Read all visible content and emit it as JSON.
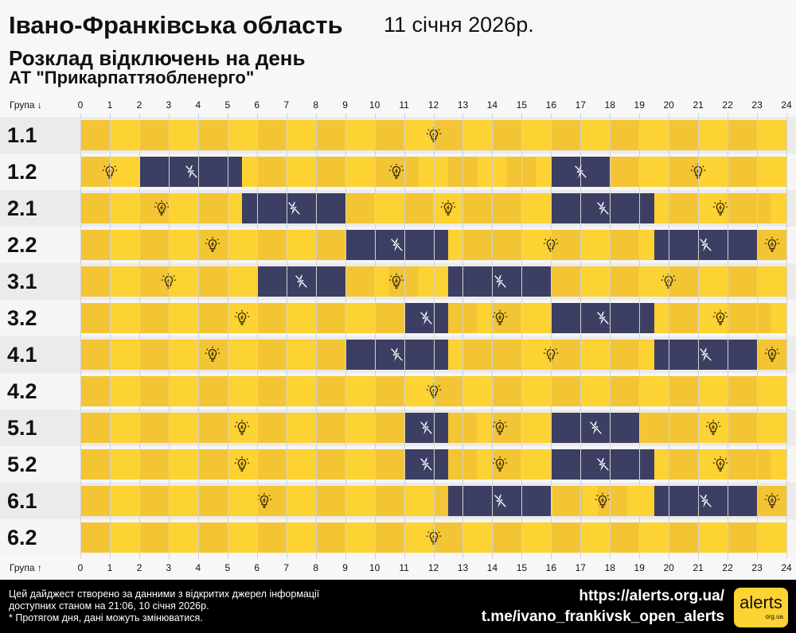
{
  "header": {
    "title": "Івано-Франківська область",
    "date": "11 січня 2026р.",
    "subtitle": "Розклад відключень на день",
    "company": "АТ \"Прикарпаттяобленерго\""
  },
  "axis": {
    "top_label": "Група ↓",
    "bottom_label": "Група ↑",
    "ticks": [
      "0",
      "1",
      "2",
      "3",
      "4",
      "5",
      "6",
      "7",
      "8",
      "9",
      "10",
      "11",
      "12",
      "13",
      "14",
      "15",
      "16",
      "17",
      "18",
      "19",
      "20",
      "21",
      "22",
      "23",
      "24"
    ]
  },
  "colors": {
    "power_on": "#fdd233",
    "power_off": "#3c3f63"
  },
  "icons": {
    "on": "lightbulb-icon",
    "off": "no-power-lightning-icon"
  },
  "groups": [
    {
      "name": "1.1",
      "outages": []
    },
    {
      "name": "1.2",
      "outages": [
        [
          2,
          5.5
        ],
        [
          16,
          18
        ]
      ]
    },
    {
      "name": "2.1",
      "outages": [
        [
          5.5,
          9
        ],
        [
          16,
          19.5
        ]
      ]
    },
    {
      "name": "2.2",
      "outages": [
        [
          9,
          12.5
        ],
        [
          19.5,
          23
        ]
      ]
    },
    {
      "name": "3.1",
      "outages": [
        [
          6,
          9
        ],
        [
          12.5,
          16
        ]
      ]
    },
    {
      "name": "3.2",
      "outages": [
        [
          11,
          12.5
        ],
        [
          16,
          19.5
        ]
      ]
    },
    {
      "name": "4.1",
      "outages": [
        [
          9,
          12.5
        ],
        [
          19.5,
          23
        ]
      ]
    },
    {
      "name": "4.2",
      "outages": []
    },
    {
      "name": "5.1",
      "outages": [
        [
          11,
          12.5
        ],
        [
          16,
          19
        ]
      ]
    },
    {
      "name": "5.2",
      "outages": [
        [
          11,
          12.5
        ],
        [
          16,
          19.5
        ]
      ]
    },
    {
      "name": "6.1",
      "outages": [
        [
          12.5,
          16
        ],
        [
          19.5,
          23
        ]
      ]
    },
    {
      "name": "6.2",
      "outages": []
    }
  ],
  "footer": {
    "note_line1": "Цей дайджест створено за данними з відкритих джерел інформації",
    "note_line2": "доступних станом на 21:06, 10 січня 2026р.",
    "note_line3": "* Протягом дня, дані можуть змінюватися.",
    "link1": "https://alerts.org.ua/",
    "link2": "t.me/ivano_frankivsk_open_alerts",
    "logo_text": "alerts",
    "logo_sub": "org.ua"
  }
}
